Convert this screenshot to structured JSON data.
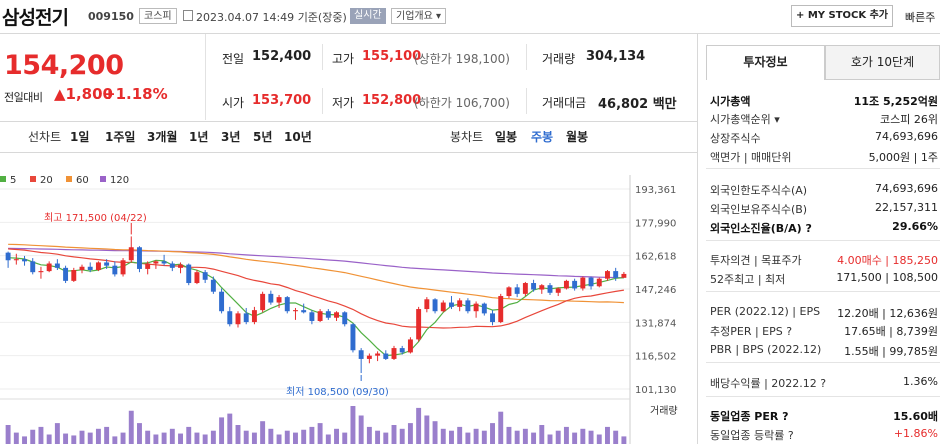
{
  "stock": {
    "name": "삼성전기",
    "code": "009150",
    "market": "코스피",
    "datetime": "2023.04.07 14:49",
    "status": "기준(장중)",
    "realtime": "실시간",
    "company_info": "기업개요 ▾"
  },
  "header": {
    "mystock_label": "+ MY STOCK 추가",
    "fast_search": "빠른주"
  },
  "quote": {
    "price": "154,200",
    "change_label": "전일대비",
    "change_value": "▲1,800",
    "change_pct": "+1.18%",
    "prev_close_label": "전일",
    "prev_close": "152,400",
    "high_label": "고가",
    "high": "155,100",
    "upper_limit": "(상한가 198,100)",
    "volume_label": "거래량",
    "volume": "304,134",
    "open_label": "시가",
    "open": "153,700",
    "low_label": "저가",
    "low": "152,800",
    "lower_limit": "(하한가 106,700)",
    "amount_label": "거래대금",
    "amount": "46,802 백만"
  },
  "periods": {
    "line_label": "선차트",
    "line_items": [
      "1일",
      "1주일",
      "3개월",
      "1년",
      "3년",
      "5년",
      "10년"
    ],
    "candle_label": "봉차트",
    "candle_items": [
      "일봉",
      "주봉",
      "월봉"
    ],
    "active": "주봉"
  },
  "colors": {
    "up": "#e62c2c",
    "down": "#2f6ccf",
    "ma5": "#52b043",
    "ma20": "#e8473b",
    "ma60": "#f09236",
    "ma120": "#9a62c8",
    "volume": "#9a7fcc"
  },
  "chart_data": {
    "type": "candlestick",
    "legend": [
      "5",
      "20",
      "60",
      "120"
    ],
    "y_ticks": [
      "193,361",
      "177,990",
      "162,618",
      "147,246",
      "131,874",
      "116,502",
      "101,130"
    ],
    "ylim": [
      101130,
      193361
    ],
    "high_annotation": "최고 171,500 (04/22)",
    "low_annotation": "최저 108,500 (09/30)",
    "volume_label": "거래량",
    "candles": [
      [
        164000,
        164500,
        157000,
        160500
      ],
      [
        160500,
        163500,
        158500,
        161000
      ],
      [
        161000,
        162500,
        158000,
        160000
      ],
      [
        160000,
        161500,
        154000,
        155000
      ],
      [
        155000,
        157500,
        152000,
        155500
      ],
      [
        155500,
        160000,
        155000,
        159000
      ],
      [
        159000,
        161000,
        156000,
        157000
      ],
      [
        157000,
        158000,
        150000,
        151000
      ],
      [
        151000,
        157000,
        150500,
        156000
      ],
      [
        156000,
        158500,
        154500,
        157500
      ],
      [
        157500,
        159500,
        155000,
        156000
      ],
      [
        156000,
        160000,
        155500,
        159500
      ],
      [
        159500,
        161000,
        156500,
        158000
      ],
      [
        158000,
        160000,
        153000,
        154000
      ],
      [
        154000,
        161500,
        153000,
        160500
      ],
      [
        160500,
        171500,
        159500,
        166500
      ],
      [
        166500,
        167000,
        155000,
        156500
      ],
      [
        156500,
        160000,
        154000,
        159000
      ],
      [
        159000,
        160500,
        156500,
        160000
      ],
      [
        160000,
        163000,
        158000,
        159000
      ],
      [
        159000,
        160000,
        155500,
        157000
      ],
      [
        157000,
        159500,
        154500,
        158500
      ],
      [
        158500,
        159000,
        149000,
        150000
      ],
      [
        150000,
        156000,
        149500,
        155000
      ],
      [
        155000,
        156000,
        150000,
        151500
      ],
      [
        151500,
        153000,
        145000,
        146000
      ],
      [
        146000,
        147500,
        136000,
        137000
      ],
      [
        137000,
        139000,
        130000,
        131000
      ],
      [
        131000,
        137000,
        129500,
        136000
      ],
      [
        136000,
        138500,
        131000,
        132000
      ],
      [
        132000,
        139000,
        131000,
        137500
      ],
      [
        137500,
        146000,
        136500,
        145000
      ],
      [
        145000,
        146500,
        140000,
        141000
      ],
      [
        141000,
        144500,
        138500,
        143500
      ],
      [
        143500,
        144000,
        136000,
        137000
      ],
      [
        137000,
        138500,
        133000,
        137500
      ],
      [
        137500,
        140500,
        136000,
        136500
      ],
      [
        136500,
        137500,
        131000,
        132500
      ],
      [
        132500,
        138000,
        132000,
        137000
      ],
      [
        137000,
        138000,
        133000,
        134000
      ],
      [
        134000,
        137000,
        132500,
        136500
      ],
      [
        136500,
        137000,
        130000,
        131000
      ],
      [
        131000,
        131500,
        118000,
        119000
      ],
      [
        119000,
        120000,
        108500,
        115000
      ],
      [
        115000,
        117500,
        113000,
        116500
      ],
      [
        116500,
        118500,
        114000,
        117500
      ],
      [
        117500,
        119000,
        114500,
        115000
      ],
      [
        115000,
        121000,
        114500,
        120000
      ],
      [
        120000,
        121000,
        117000,
        118000
      ],
      [
        118000,
        125000,
        117500,
        124000
      ],
      [
        124000,
        139000,
        123000,
        138000
      ],
      [
        138000,
        143500,
        136500,
        142500
      ],
      [
        142500,
        143000,
        136000,
        137000
      ],
      [
        137000,
        142000,
        136500,
        141000
      ],
      [
        141000,
        144000,
        138000,
        139000
      ],
      [
        139000,
        143000,
        137000,
        142000
      ],
      [
        142000,
        143000,
        136000,
        137000
      ],
      [
        137000,
        141500,
        134000,
        140500
      ],
      [
        140500,
        141000,
        135000,
        136000
      ],
      [
        136000,
        137500,
        130500,
        132000
      ],
      [
        132000,
        145000,
        131500,
        144000
      ],
      [
        144000,
        148500,
        143000,
        148000
      ],
      [
        148000,
        149500,
        143500,
        145000
      ],
      [
        145000,
        150500,
        144000,
        150000
      ],
      [
        150000,
        151500,
        146000,
        147000
      ],
      [
        147000,
        149500,
        145000,
        149000
      ],
      [
        149000,
        150000,
        144500,
        145500
      ],
      [
        145500,
        148000,
        144000,
        147500
      ],
      [
        147500,
        151500,
        147000,
        151000
      ],
      [
        151000,
        152000,
        146500,
        147500
      ],
      [
        147500,
        153000,
        146500,
        152500
      ],
      [
        152500,
        153000,
        147000,
        148500
      ],
      [
        148500,
        152500,
        148000,
        152000
      ],
      [
        152000,
        156000,
        151000,
        155500
      ],
      [
        155500,
        157000,
        151000,
        152400
      ],
      [
        152400,
        155100,
        152800,
        154200
      ]
    ],
    "volumes": [
      20,
      12,
      8,
      15,
      18,
      10,
      22,
      11,
      9,
      14,
      12,
      16,
      18,
      8,
      12,
      35,
      22,
      14,
      10,
      12,
      16,
      11,
      18,
      12,
      10,
      14,
      28,
      32,
      20,
      14,
      12,
      24,
      16,
      10,
      14,
      12,
      15,
      18,
      22,
      10,
      16,
      12,
      40,
      30,
      18,
      14,
      12,
      20,
      16,
      22,
      38,
      30,
      24,
      16,
      14,
      18,
      12,
      16,
      14,
      22,
      34,
      18,
      14,
      16,
      12,
      20,
      10,
      14,
      18,
      12,
      16,
      14,
      10,
      18,
      14,
      8
    ]
  },
  "right": {
    "tab_invest": "투자정보",
    "tab_quote": "호가 10단계",
    "rows": [
      {
        "label": "시가총액",
        "value": "11조 5,252억원",
        "bold": true
      },
      {
        "label": "시가총액순위 ▾",
        "value": "코스피 26위"
      },
      {
        "label": "상장주식수",
        "value": "74,693,696"
      },
      {
        "label": "액면가 | 매매단위",
        "value": "5,000원 | 1주"
      },
      {
        "label": "외국인한도주식수(A)",
        "value": "74,693,696"
      },
      {
        "label": "외국인보유주식수(B)",
        "value": "22,157,311"
      },
      {
        "label": "외국인소진율(B/A) ?",
        "value": "29.66%",
        "bold": true
      },
      {
        "label": "투자의견 | 목표주가",
        "value": "4.00매수 | 185,250",
        "red": true
      },
      {
        "label": "52주최고 | 최저",
        "value": "171,500 | 108,500"
      },
      {
        "label": "PER (2022.12) | EPS",
        "value": "12.20배 | 12,636원"
      },
      {
        "label": "추정PER | EPS ?",
        "value": "17.65배 | 8,739원"
      },
      {
        "label": "PBR | BPS (2022.12)",
        "value": "1.55배 | 99,785원"
      },
      {
        "label": "배당수익률 | 2022.12 ?",
        "value": "1.36%"
      },
      {
        "label": "동일업종 PER ?",
        "value": "15.60배",
        "bold": true
      },
      {
        "label": "동일업종 등락률 ?",
        "value": "+1.86%",
        "red": true
      }
    ]
  }
}
